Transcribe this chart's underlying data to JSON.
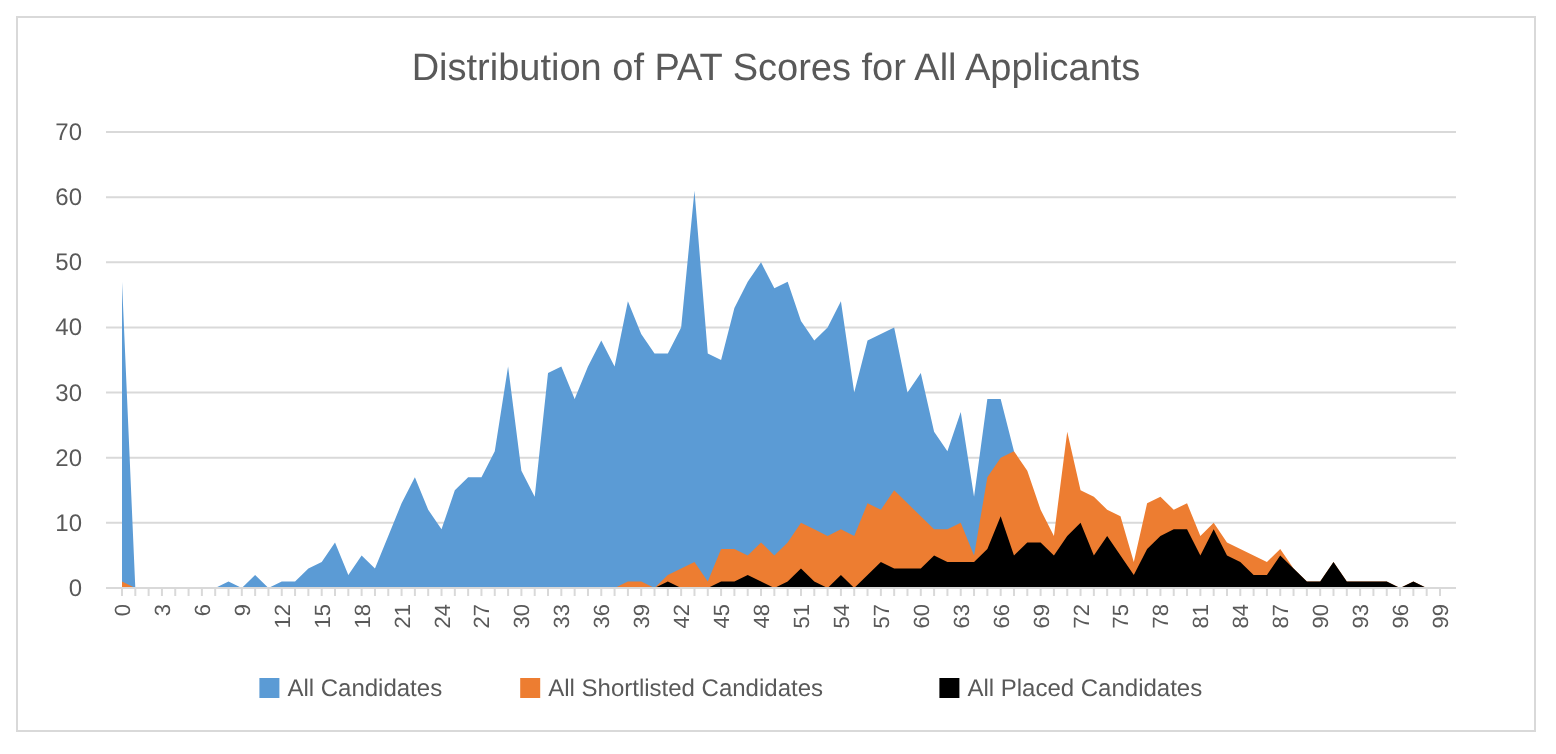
{
  "chart_data": {
    "type": "area",
    "title": "Distribution of PAT Scores for All Applicants",
    "categories": [
      "0",
      null,
      null,
      "3",
      null,
      null,
      "6",
      null,
      null,
      "9",
      null,
      null,
      "12",
      null,
      null,
      "15",
      null,
      null,
      "18",
      null,
      null,
      "21",
      null,
      null,
      "24",
      null,
      null,
      "27",
      null,
      null,
      "30",
      null,
      null,
      "33",
      null,
      null,
      "36",
      null,
      null,
      "39",
      null,
      null,
      "42",
      null,
      null,
      "45",
      null,
      null,
      "48",
      null,
      null,
      "51",
      null,
      null,
      "54",
      null,
      null,
      "57",
      null,
      null,
      "60",
      null,
      null,
      "63",
      null,
      null,
      "66",
      null,
      null,
      "69",
      null,
      null,
      "72",
      null,
      null,
      "75",
      null,
      null,
      "78",
      null,
      null,
      "81",
      null,
      null,
      "84",
      null,
      null,
      "87",
      null,
      null,
      "90",
      null,
      null,
      "93",
      null,
      null,
      "96",
      null,
      null,
      "99"
    ],
    "series": [
      {
        "name": "All Candidates",
        "color": "#5b9bd5",
        "values": [
          47,
          0,
          0,
          0,
          0,
          0,
          0,
          0,
          1,
          0,
          2,
          0,
          1,
          1,
          3,
          4,
          7,
          2,
          5,
          3,
          8,
          13,
          17,
          12,
          9,
          15,
          17,
          17,
          21,
          34,
          18,
          14,
          33,
          34,
          29,
          34,
          38,
          34,
          44,
          39,
          36,
          36,
          40,
          61,
          36,
          35,
          43,
          47,
          50,
          46,
          47,
          41,
          38,
          40,
          44,
          30,
          38,
          39,
          40,
          30,
          33,
          24,
          21,
          27,
          14,
          29,
          29,
          21,
          null,
          null,
          null,
          null,
          null,
          null,
          null,
          null,
          null,
          null,
          null,
          null,
          null,
          null,
          null,
          null,
          null,
          null,
          null,
          null,
          null,
          null,
          null,
          null,
          null,
          null,
          null,
          null,
          null,
          null,
          null,
          null
        ]
      },
      {
        "name": "All Shortlisted Candidates",
        "color": "#ed7d31",
        "values": [
          1,
          0,
          0,
          0,
          0,
          0,
          0,
          0,
          0,
          0,
          0,
          0,
          0,
          0,
          0,
          0,
          0,
          0,
          0,
          0,
          0,
          0,
          0,
          0,
          0,
          0,
          0,
          0,
          0,
          0,
          0,
          0,
          0,
          0,
          0,
          0,
          0,
          0,
          1,
          1,
          0,
          2,
          3,
          4,
          1,
          6,
          6,
          5,
          7,
          5,
          7,
          10,
          9,
          8,
          9,
          8,
          13,
          12,
          15,
          13,
          11,
          9,
          9,
          10,
          5,
          17,
          20,
          21,
          18,
          12,
          8,
          24,
          15,
          14,
          12,
          11,
          4,
          13,
          14,
          12,
          13,
          8,
          10,
          7,
          6,
          5,
          4,
          6,
          3,
          1,
          1,
          4,
          1,
          1,
          1,
          1,
          0,
          1,
          0,
          0
        ]
      },
      {
        "name": "All Placed Candidates",
        "color": "#000000",
        "values": [
          0,
          0,
          0,
          0,
          0,
          0,
          0,
          0,
          0,
          0,
          0,
          0,
          0,
          0,
          0,
          0,
          0,
          0,
          0,
          0,
          0,
          0,
          0,
          0,
          0,
          0,
          0,
          0,
          0,
          0,
          0,
          0,
          0,
          0,
          0,
          0,
          0,
          0,
          0,
          0,
          0,
          1,
          0,
          0,
          0,
          1,
          1,
          2,
          1,
          0,
          1,
          3,
          1,
          0,
          2,
          0,
          2,
          4,
          3,
          3,
          3,
          5,
          4,
          4,
          4,
          6,
          11,
          5,
          7,
          7,
          5,
          8,
          10,
          5,
          8,
          5,
          2,
          6,
          8,
          9,
          9,
          5,
          9,
          5,
          4,
          2,
          2,
          5,
          3,
          1,
          1,
          4,
          1,
          1,
          1,
          1,
          0,
          1,
          0,
          0
        ]
      }
    ],
    "ylim": [
      0,
      70
    ],
    "yticks": [
      0,
      10,
      20,
      30,
      40,
      50,
      60,
      70
    ],
    "grid": "y",
    "legend": "bottom"
  }
}
